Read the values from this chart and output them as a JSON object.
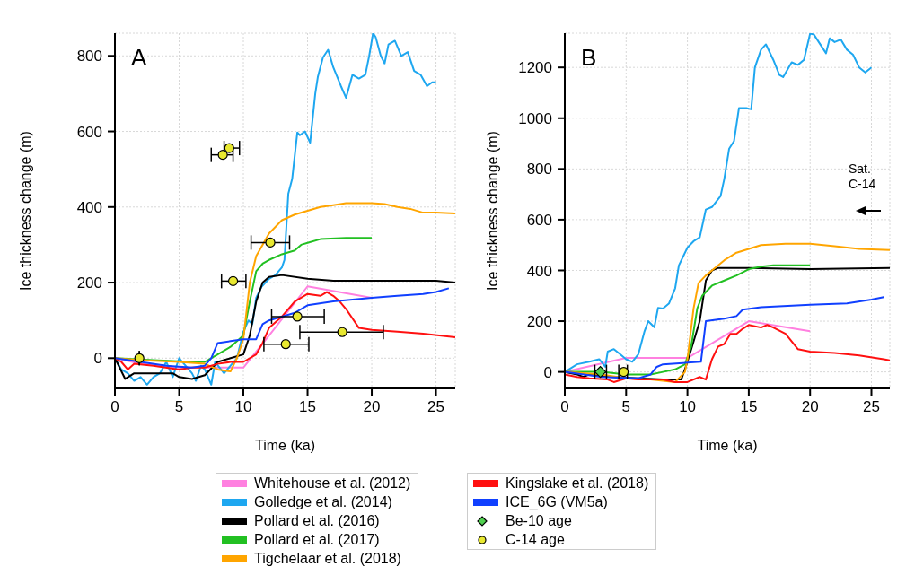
{
  "chart_data": [
    {
      "type": "line",
      "title": "A",
      "xlabel": "Time (ka)",
      "ylabel": "Ice thickness change (m)",
      "xlim": [
        0,
        26.5
      ],
      "ylim": [
        -80,
        860
      ],
      "xticks": [
        0,
        5,
        10,
        15,
        20,
        25
      ],
      "yticks": [
        0,
        200,
        400,
        600,
        800
      ],
      "grid": true,
      "legend": "bottom",
      "series": [
        {
          "name": "Whitehouse et al. (2012)",
          "color": "#ff80e0",
          "type": "line",
          "marker": "none",
          "x": [
            0,
            2,
            5,
            10,
            12,
            15,
            20
          ],
          "values": [
            0,
            -15,
            -25,
            -25,
            60,
            190,
            160
          ]
        },
        {
          "name": "Golledge et al. (2014)",
          "color": "#1ea7f0",
          "type": "line",
          "marker": "none",
          "x": [
            0,
            0.5,
            1,
            1.5,
            2,
            2.5,
            3,
            3.5,
            4,
            4.5,
            5,
            5.5,
            6,
            6.3,
            6.7,
            7,
            7.5,
            7.8,
            8.5,
            9,
            9.5,
            10,
            10.4,
            10.7,
            11,
            11.4,
            12,
            12.5,
            13,
            13.2,
            13.5,
            13.8,
            14.2,
            14.4,
            14.8,
            15.2,
            15.6,
            15.8,
            16.2,
            16.6,
            17,
            17.6,
            18,
            18.5,
            19,
            19.5,
            19.8,
            20.1,
            20.3,
            20.7,
            21,
            21.3,
            21.8,
            22.3,
            22.8,
            23.3,
            23.8,
            24.3,
            24.7,
            25
          ],
          "values": [
            0,
            -30,
            -40,
            -60,
            -50,
            -70,
            -50,
            -40,
            -10,
            -50,
            0,
            -20,
            -40,
            -60,
            -20,
            -30,
            -70,
            -10,
            -40,
            -20,
            0,
            70,
            100,
            90,
            160,
            188,
            210,
            220,
            240,
            260,
            435,
            474,
            597,
            590,
            600,
            570,
            700,
            744,
            796,
            816,
            770,
            720,
            689,
            750,
            740,
            750,
            800,
            860,
            850,
            800,
            780,
            830,
            840,
            800,
            810,
            760,
            750,
            720,
            730,
            730
          ]
        },
        {
          "name": "Pollard et al. (2016)",
          "color": "#000000",
          "type": "line",
          "marker": "none",
          "x": [
            0,
            0.8,
            1.5,
            3,
            4.5,
            5,
            6,
            7,
            8,
            9,
            10,
            10.5,
            11,
            11.5,
            12,
            13,
            15,
            17,
            20,
            25,
            26.5
          ],
          "values": [
            0,
            -55,
            -40,
            -40,
            -40,
            -50,
            -55,
            -45,
            -10,
            0,
            10,
            60,
            150,
            200,
            215,
            220,
            210,
            205,
            205,
            205,
            200
          ]
        },
        {
          "name": "Pollard et al. (2017)",
          "color": "#22c022",
          "type": "line",
          "marker": "none",
          "x": [
            0,
            3,
            6,
            7,
            8,
            9,
            10,
            10.5,
            11,
            11.5,
            12,
            13,
            14,
            14.5,
            15,
            16,
            18,
            20
          ],
          "values": [
            0,
            -5,
            -10,
            -10,
            10,
            30,
            60,
            150,
            230,
            250,
            260,
            275,
            285,
            300,
            305,
            315,
            318,
            318
          ]
        },
        {
          "name": "Tigchelaar et al. (2018)",
          "color": "#ffa500",
          "type": "line",
          "marker": "none",
          "x": [
            0,
            2,
            5,
            7,
            8,
            9,
            9.5,
            10,
            10.5,
            11,
            11.5,
            12,
            13,
            14,
            15,
            16,
            17,
            18,
            20,
            21,
            22,
            23,
            24,
            25,
            26.5
          ],
          "values": [
            0,
            -5,
            -10,
            -15,
            -30,
            -35,
            0,
            50,
            200,
            270,
            300,
            330,
            365,
            380,
            390,
            400,
            405,
            410,
            410,
            408,
            400,
            395,
            385,
            385,
            383
          ]
        },
        {
          "name": "Kingslake et al. (2018)",
          "color": "#ff1010",
          "type": "line",
          "marker": "none",
          "x": [
            0,
            0.5,
            1,
            1.5,
            3,
            5,
            6,
            7,
            8,
            9,
            10,
            11,
            11.5,
            12,
            13,
            13.5,
            14,
            15,
            16,
            16.5,
            17,
            17.5,
            18,
            19,
            20,
            22,
            24,
            26.5
          ],
          "values": [
            0,
            -10,
            -30,
            -15,
            -20,
            -30,
            -25,
            -25,
            -15,
            -10,
            -10,
            10,
            40,
            80,
            110,
            130,
            150,
            170,
            165,
            175,
            165,
            150,
            130,
            80,
            75,
            70,
            65,
            55
          ]
        },
        {
          "name": "ICE_6G (VM5a)",
          "color": "#1040ff",
          "type": "line",
          "marker": "none",
          "x": [
            0,
            2,
            4,
            6,
            7,
            7.5,
            8,
            9,
            10,
            11,
            11.5,
            12,
            13,
            14,
            15,
            17,
            20,
            22,
            24,
            25,
            26
          ],
          "values": [
            0,
            -10,
            -20,
            -25,
            -20,
            0,
            40,
            45,
            50,
            50,
            90,
            100,
            110,
            120,
            140,
            150,
            160,
            165,
            170,
            175,
            185
          ]
        },
        {
          "name": "C-14 age",
          "color": "#e8e830",
          "type": "scatter",
          "marker": "circle",
          "x": [
            8.9,
            8.4,
            12.1,
            9.2,
            14.2,
            17.7,
            13.3,
            1.9
          ],
          "values": [
            556,
            538,
            306,
            204,
            110,
            69,
            37,
            0
          ],
          "xerrors": [
            [
              8.5,
              9.7
            ],
            [
              7.5,
              9.2
            ],
            [
              10.6,
              13.6
            ],
            [
              8.3,
              10.2
            ],
            [
              12.2,
              16.3
            ],
            [
              14.4,
              20.9
            ],
            [
              11.6,
              15.1
            ],
            null
          ]
        }
      ]
    },
    {
      "type": "line",
      "title": "B",
      "xlabel": "Time (ka)",
      "ylabel": "Ice thickness change (m)",
      "xlim": [
        0,
        26.5
      ],
      "ylim": [
        -65,
        1335
      ],
      "xticks": [
        0,
        5,
        10,
        15,
        20,
        25
      ],
      "yticks": [
        0,
        200,
        400,
        600,
        800,
        1000,
        1200
      ],
      "grid": true,
      "legend": "bottom",
      "annotations": [
        "Sat. C-14"
      ],
      "series": [
        {
          "name": "Whitehouse et al. (2012)",
          "color": "#ff80e0",
          "type": "line",
          "marker": "none",
          "x": [
            0,
            5,
            10,
            15,
            20
          ],
          "values": [
            0,
            55,
            55,
            200,
            160
          ]
        },
        {
          "name": "Golledge et al. (2014)",
          "color": "#1ea7f0",
          "type": "line",
          "marker": "none",
          "x": [
            0,
            1,
            2,
            2.8,
            3.3,
            3.5,
            4,
            4.5,
            5,
            5.5,
            6,
            6.5,
            6.8,
            7.3,
            7.6,
            8,
            8.5,
            9,
            9.3,
            10,
            10.5,
            11,
            11.5,
            12,
            12.7,
            13,
            13.4,
            13.8,
            14.2,
            14.8,
            15.2,
            15.5,
            16,
            16.4,
            17,
            17.5,
            17.8,
            18.5,
            19,
            19.5,
            20,
            20.3,
            21.3,
            21.6,
            22,
            22.5,
            23,
            23.5,
            24,
            24.5,
            25
          ],
          "values": [
            0,
            30,
            40,
            50,
            20,
            80,
            90,
            70,
            50,
            40,
            70,
            160,
            200,
            176,
            252,
            250,
            270,
            330,
            420,
            490,
            515,
            530,
            640,
            650,
            693,
            760,
            880,
            910,
            1040,
            1040,
            1035,
            1200,
            1270,
            1291,
            1230,
            1170,
            1162,
            1220,
            1210,
            1230,
            1333,
            1330,
            1256,
            1315,
            1300,
            1310,
            1270,
            1250,
            1200,
            1180,
            1200
          ]
        },
        {
          "name": "Pollard et al. (2016)",
          "color": "#000000",
          "type": "line",
          "marker": "none",
          "x": [
            0,
            1,
            1.5,
            2,
            4,
            6,
            8,
            9.5,
            10,
            10.5,
            11,
            11.5,
            12,
            12.5,
            15,
            20,
            26.5
          ],
          "values": [
            0,
            -10,
            -20,
            -10,
            -20,
            -25,
            -30,
            -30,
            40,
            120,
            200,
            360,
            400,
            410,
            410,
            405,
            410
          ]
        },
        {
          "name": "Pollard et al. (2017)",
          "color": "#22c022",
          "type": "line",
          "marker": "none",
          "x": [
            0,
            3,
            5,
            7,
            8,
            9,
            9.8,
            10.3,
            10.8,
            11.2,
            12,
            13,
            14,
            15,
            16,
            17,
            20
          ],
          "values": [
            0,
            0,
            -10,
            -10,
            0,
            10,
            30,
            100,
            250,
            300,
            340,
            360,
            380,
            405,
            415,
            420,
            420
          ]
        },
        {
          "name": "Tigchelaar et al. (2018)",
          "color": "#ffa500",
          "type": "line",
          "marker": "none",
          "x": [
            0,
            3,
            5,
            7,
            8,
            9,
            9.8,
            10,
            10.5,
            10.9,
            11.5,
            12,
            13,
            14,
            15,
            16,
            18,
            20,
            22,
            24,
            26.5
          ],
          "values": [
            0,
            -10,
            -25,
            -30,
            -35,
            -40,
            0,
            50,
            250,
            350,
            380,
            400,
            440,
            470,
            485,
            500,
            505,
            505,
            495,
            485,
            480
          ]
        },
        {
          "name": "Kingslake et al. (2018)",
          "color": "#ff1010",
          "type": "line",
          "marker": "none",
          "x": [
            0,
            1,
            2,
            3.5,
            4,
            5,
            6,
            8,
            9,
            10,
            11,
            11.5,
            12,
            12.5,
            13,
            13.5,
            14,
            14.5,
            15,
            16,
            16.5,
            17,
            18,
            19,
            20,
            22,
            24,
            26,
            26.5
          ],
          "values": [
            -10,
            -20,
            -25,
            -30,
            -40,
            -25,
            -30,
            -30,
            -40,
            -40,
            -20,
            -30,
            50,
            100,
            110,
            150,
            150,
            170,
            185,
            175,
            185,
            175,
            150,
            90,
            80,
            75,
            65,
            50,
            45
          ]
        },
        {
          "name": "ICE_6G (VM5a)",
          "color": "#1040ff",
          "type": "line",
          "marker": "none",
          "x": [
            0,
            3,
            6,
            7,
            7.5,
            8,
            11.1,
            11.5,
            13,
            14,
            14.5,
            16,
            20,
            23,
            25,
            26
          ],
          "values": [
            0,
            -20,
            -25,
            -10,
            20,
            30,
            40,
            200,
            210,
            220,
            245,
            255,
            265,
            270,
            285,
            295
          ]
        },
        {
          "name": "Be-10 age",
          "color": "#50d050",
          "type": "scatter",
          "marker": "diamond",
          "x": [
            2.9
          ],
          "values": [
            0
          ],
          "xerrors": [
            [
              2.45,
              3.4
            ]
          ]
        },
        {
          "name": "C-14 age",
          "color": "#e8e830",
          "type": "scatter",
          "marker": "circle",
          "x": [
            4.8
          ],
          "values": [
            0
          ],
          "xerrors": [
            [
              4.4,
              5.1
            ]
          ]
        }
      ]
    }
  ]
}
